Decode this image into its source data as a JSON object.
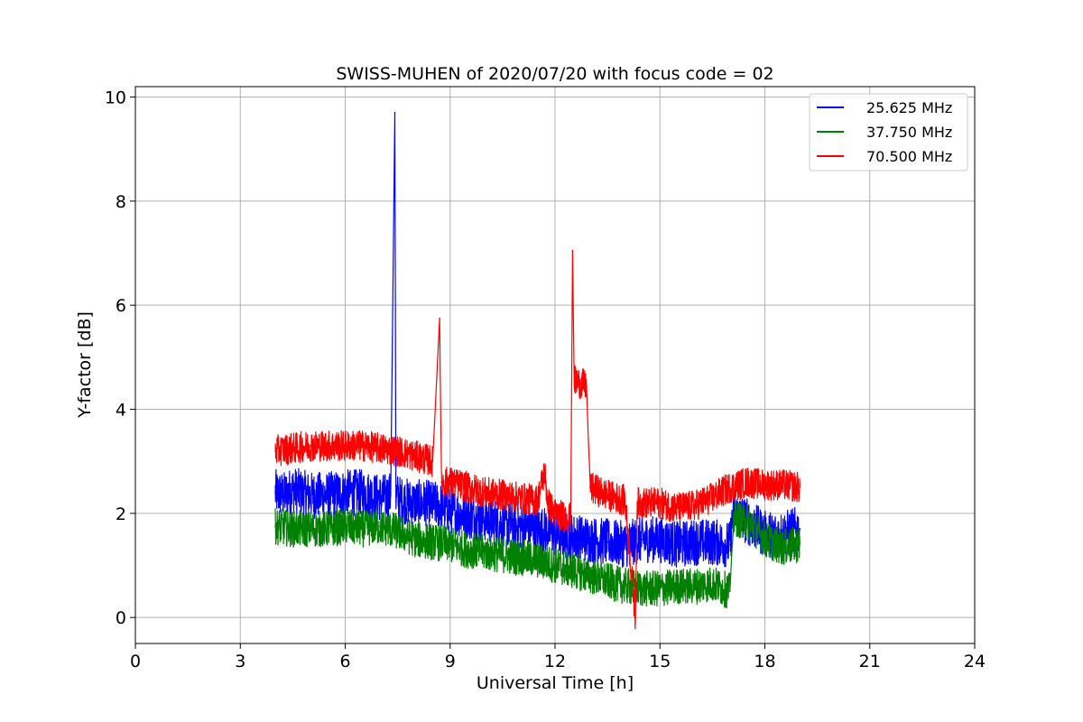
{
  "chart_data": {
    "type": "line",
    "title": "SWISS-MUHEN of 2020/07/20 with focus code = 02",
    "xlabel": "Universal Time [h]",
    "ylabel": "Y-factor [dB]",
    "xlim": [
      0,
      24
    ],
    "ylim": [
      -0.5,
      10.2
    ],
    "xticks": [
      0,
      3,
      6,
      9,
      12,
      15,
      18,
      21,
      24
    ],
    "yticks": [
      0,
      2,
      4,
      6,
      8,
      10
    ],
    "grid": true,
    "legend_position": "top-right",
    "series": [
      {
        "name": "25.625 MHz",
        "color": "#0000ff",
        "x": [
          4.0,
          4.25,
          4.5,
          4.75,
          5.0,
          5.5,
          6.0,
          6.5,
          7.0,
          7.3,
          7.42,
          7.45,
          7.6,
          8.0,
          8.3,
          8.7,
          9.0,
          9.5,
          10.0,
          10.5,
          11.0,
          11.5,
          11.9,
          12.0,
          12.5,
          13.0,
          13.5,
          14.0,
          14.5,
          15.0,
          15.5,
          16.0,
          16.5,
          17.0,
          17.1,
          17.5,
          18.0,
          18.5,
          19.0
        ],
        "y": [
          2.4,
          2.35,
          2.45,
          2.4,
          2.35,
          2.35,
          2.4,
          2.4,
          2.3,
          2.35,
          9.7,
          2.35,
          2.25,
          2.2,
          2.2,
          2.15,
          2.05,
          1.95,
          1.9,
          1.8,
          1.75,
          1.7,
          1.65,
          1.6,
          1.55,
          1.5,
          1.45,
          1.4,
          1.5,
          1.5,
          1.4,
          1.45,
          1.45,
          1.4,
          2.0,
          1.85,
          1.6,
          1.6,
          1.7
        ]
      },
      {
        "name": "37.750 MHz",
        "color": "#008000",
        "x": [
          4.0,
          4.5,
          5.0,
          5.5,
          6.0,
          6.5,
          7.0,
          7.5,
          8.0,
          8.5,
          9.0,
          9.5,
          10.0,
          10.5,
          11.0,
          11.5,
          12.0,
          12.5,
          13.0,
          13.5,
          14.0,
          14.5,
          15.0,
          15.5,
          16.0,
          16.5,
          17.0,
          17.1,
          17.5,
          18.0,
          18.5,
          19.0
        ],
        "y": [
          1.75,
          1.7,
          1.7,
          1.7,
          1.75,
          1.7,
          1.75,
          1.65,
          1.5,
          1.45,
          1.4,
          1.3,
          1.25,
          1.2,
          1.15,
          1.1,
          1.0,
          0.9,
          0.8,
          0.7,
          0.6,
          0.55,
          0.55,
          0.6,
          0.6,
          0.65,
          0.5,
          1.9,
          1.85,
          1.5,
          1.35,
          1.4
        ]
      },
      {
        "name": "70.500 MHz",
        "color": "#ff0000",
        "x": [
          4.0,
          4.5,
          5.0,
          5.5,
          6.0,
          6.5,
          7.0,
          7.5,
          8.0,
          8.5,
          8.7,
          8.75,
          9.0,
          9.5,
          10.0,
          10.5,
          11.0,
          11.5,
          11.7,
          11.8,
          12.0,
          12.45,
          12.5,
          12.55,
          12.9,
          13.0,
          13.5,
          14.0,
          14.3,
          14.35,
          14.5,
          15.0,
          15.5,
          16.0,
          16.5,
          17.0,
          17.5,
          18.0,
          18.5,
          19.0
        ],
        "y": [
          3.2,
          3.25,
          3.3,
          3.3,
          3.3,
          3.3,
          3.25,
          3.2,
          3.1,
          3.0,
          5.75,
          2.6,
          2.6,
          2.5,
          2.4,
          2.35,
          2.3,
          2.25,
          2.8,
          2.2,
          2.0,
          1.9,
          7.05,
          4.55,
          4.45,
          2.5,
          2.35,
          2.25,
          0.0,
          2.2,
          2.2,
          2.2,
          2.1,
          2.15,
          2.3,
          2.5,
          2.6,
          2.55,
          2.55,
          2.5
        ]
      }
    ]
  }
}
